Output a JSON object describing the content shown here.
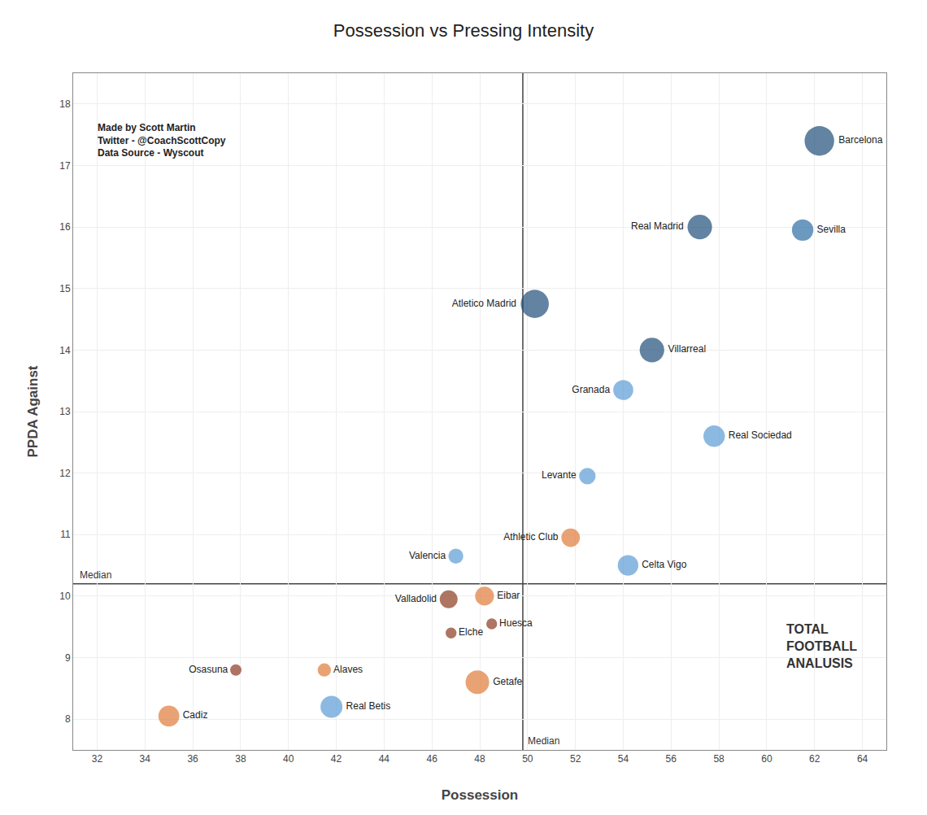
{
  "chart_data": {
    "type": "scatter",
    "title": "Possession vs Pressing Intensity",
    "xlabel": "Possession",
    "ylabel": "PPDA Against",
    "xlim": [
      31,
      65
    ],
    "ylim": [
      7.5,
      18.5
    ],
    "xticks": [
      32,
      34,
      36,
      38,
      40,
      42,
      44,
      46,
      48,
      50,
      52,
      54,
      56,
      58,
      60,
      62,
      64
    ],
    "yticks": [
      8,
      9,
      10,
      11,
      12,
      13,
      14,
      15,
      16,
      17,
      18
    ],
    "grid": true,
    "labels": [
      "Barcelona",
      "Real Madrid",
      "Sevilla",
      "Atletico Madrid",
      "Villarreal",
      "Granada",
      "Real Sociedad",
      "Levante",
      "Celta Vigo",
      "Valencia",
      "Athletic Club",
      "Eibar",
      "Valladolid",
      "Elche",
      "Huesca",
      "Getafe",
      "Real Betis",
      "Alaves",
      "Osasuna",
      "Cadiz"
    ],
    "x": [
      62.2,
      57.2,
      61.5,
      50.3,
      55.2,
      54.0,
      57.8,
      52.5,
      54.2,
      47.0,
      51.8,
      48.2,
      46.7,
      46.8,
      48.5,
      47.9,
      41.8,
      41.5,
      37.8,
      35.0
    ],
    "values": [
      17.4,
      16.0,
      15.95,
      14.75,
      14.0,
      13.35,
      12.6,
      11.95,
      10.5,
      10.65,
      10.95,
      10.0,
      9.95,
      9.4,
      9.55,
      8.6,
      8.2,
      8.8,
      8.8,
      8.05
    ],
    "sizes": [
      370,
      255,
      195,
      335,
      255,
      170,
      195,
      115,
      180,
      95,
      145,
      150,
      135,
      50,
      50,
      235,
      205,
      75,
      55,
      185
    ],
    "colors": [
      "#1f4e79",
      "#1f4e79",
      "#2e6da4",
      "#1f4e79",
      "#1f4e79",
      "#5b9bd5",
      "#5b9bd5",
      "#5b9bd5",
      "#5b9bd5",
      "#5b9bd5",
      "#e07b39",
      "#e07b39",
      "#8B3A1F",
      "#8B3A1F",
      "#8B3A1F",
      "#e07b39",
      "#5b9bd5",
      "#e07b39",
      "#8B3A1F",
      "#e07b39"
    ],
    "medians": {
      "x": 49.8,
      "y": 10.2,
      "label": "Median"
    },
    "annotations": [
      "Made by Scott Martin\nTwitter - @CoachScottCopy\nData Source - Wyscout",
      "TOTAL\nFOOTBALL\nANALUSIS"
    ]
  }
}
